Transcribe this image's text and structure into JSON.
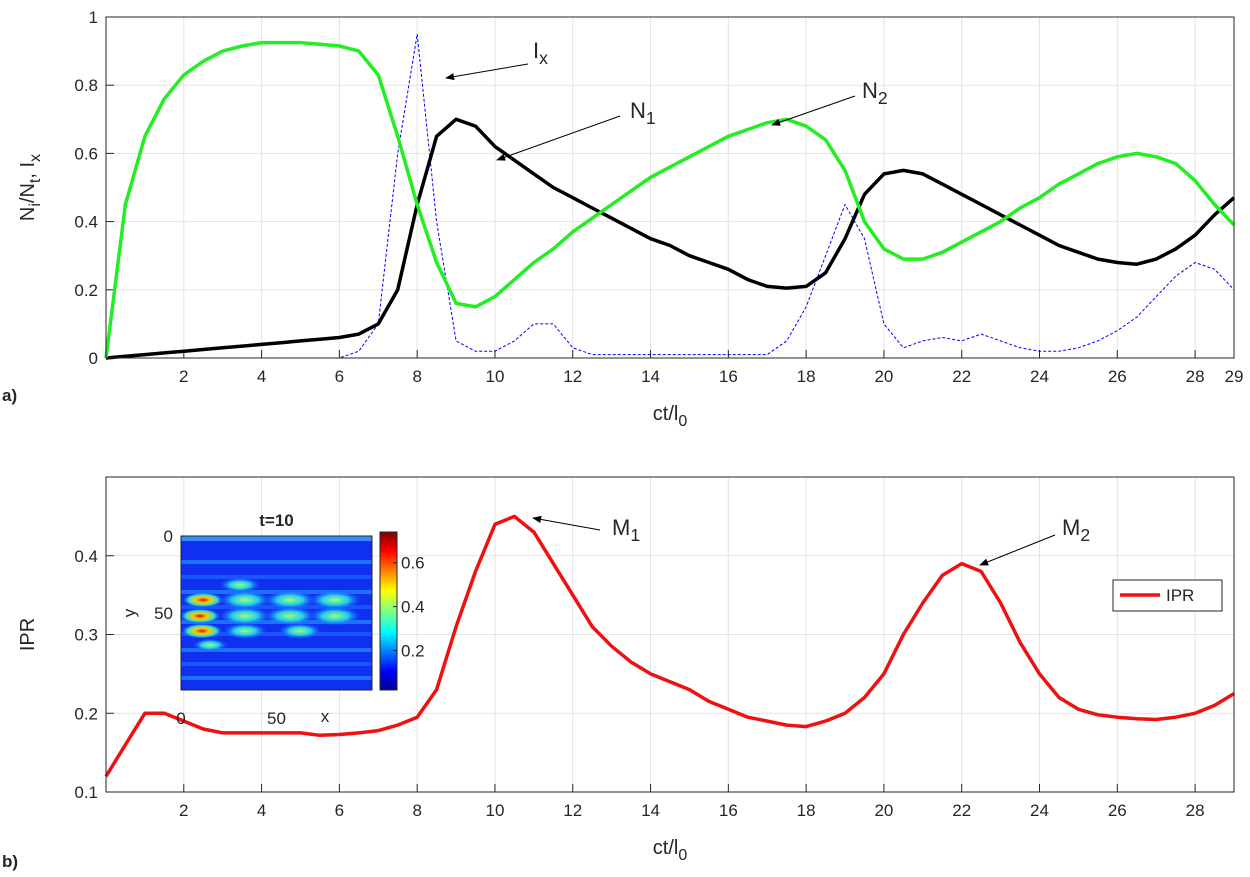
{
  "chart_data": [
    {
      "type": "line",
      "panel_label": "a)",
      "xlabel": [
        "ct/l",
        "0"
      ],
      "ylabel": [
        "N",
        "i",
        "/N",
        "t",
        ", I",
        "x"
      ],
      "x": [
        0,
        0.5,
        1,
        1.5,
        2,
        2.5,
        3,
        3.5,
        4,
        4.5,
        5,
        5.5,
        6,
        6.5,
        7,
        7.5,
        8,
        8.5,
        9,
        9.5,
        10,
        10.5,
        11,
        11.5,
        12,
        12.5,
        13,
        13.5,
        14,
        14.5,
        15,
        15.5,
        16,
        16.5,
        17,
        17.5,
        18,
        18.5,
        19,
        19.5,
        20,
        20.5,
        21,
        21.5,
        22,
        22.5,
        23,
        23.5,
        24,
        24.5,
        25,
        25.5,
        26,
        26.5,
        27,
        27.5,
        28,
        28.5,
        29
      ],
      "series": [
        {
          "color": "#0000ff",
          "dashed": true,
          "values": [
            0,
            0,
            0,
            0,
            0,
            0,
            0,
            0,
            0,
            0,
            0,
            0,
            0,
            0.02,
            0.1,
            0.6,
            0.95,
            0.4,
            0.05,
            0.02,
            0.02,
            0.05,
            0.1,
            0.1,
            0.03,
            0.01,
            0.01,
            0.01,
            0.01,
            0.01,
            0.01,
            0.01,
            0.01,
            0.01,
            0.01,
            0.05,
            0.15,
            0.3,
            0.45,
            0.35,
            0.1,
            0.03,
            0.05,
            0.06,
            0.05,
            0.07,
            0.05,
            0.03,
            0.02,
            0.02,
            0.03,
            0.05,
            0.08,
            0.12,
            0.18,
            0.24,
            0.28,
            0.26,
            0.2
          ]
        },
        {
          "color": "#000000",
          "values": [
            0,
            0.005,
            0.01,
            0.015,
            0.02,
            0.025,
            0.03,
            0.035,
            0.04,
            0.045,
            0.05,
            0.055,
            0.06,
            0.07,
            0.1,
            0.2,
            0.45,
            0.65,
            0.7,
            0.68,
            0.62,
            0.58,
            0.54,
            0.5,
            0.47,
            0.44,
            0.41,
            0.38,
            0.35,
            0.33,
            0.3,
            0.28,
            0.26,
            0.23,
            0.21,
            0.205,
            0.21,
            0.25,
            0.35,
            0.48,
            0.54,
            0.55,
            0.54,
            0.51,
            0.48,
            0.45,
            0.42,
            0.39,
            0.36,
            0.33,
            0.31,
            0.29,
            0.28,
            0.275,
            0.29,
            0.32,
            0.36,
            0.42,
            0.47
          ]
        },
        {
          "color": "#22ee22",
          "values": [
            0,
            0.45,
            0.65,
            0.76,
            0.83,
            0.87,
            0.9,
            0.915,
            0.925,
            0.925,
            0.925,
            0.92,
            0.915,
            0.9,
            0.83,
            0.65,
            0.45,
            0.28,
            0.16,
            0.15,
            0.18,
            0.23,
            0.28,
            0.32,
            0.37,
            0.41,
            0.45,
            0.49,
            0.53,
            0.56,
            0.59,
            0.62,
            0.65,
            0.67,
            0.69,
            0.7,
            0.68,
            0.64,
            0.55,
            0.4,
            0.32,
            0.29,
            0.29,
            0.31,
            0.34,
            0.37,
            0.4,
            0.44,
            0.47,
            0.51,
            0.54,
            0.57,
            0.59,
            0.6,
            0.59,
            0.57,
            0.52,
            0.45,
            0.39
          ]
        }
      ],
      "annotations": [
        [
          "I",
          "x"
        ],
        [
          "N",
          "1"
        ],
        [
          "N",
          "2"
        ]
      ],
      "xlim": [
        0,
        29
      ],
      "xticks": [
        2,
        4,
        6,
        8,
        10,
        12,
        14,
        16,
        18,
        20,
        22,
        24,
        26,
        28,
        29
      ],
      "ylim": [
        0,
        1
      ],
      "yticks": [
        0,
        0.2,
        0.4,
        0.6,
        0.8,
        1
      ],
      "grid": true
    },
    {
      "type": "line",
      "panel_label": "b)",
      "xlabel": [
        "ct/l",
        "0"
      ],
      "ylabel": [
        "IPR"
      ],
      "x": [
        0,
        0.5,
        1,
        1.5,
        2,
        2.5,
        3,
        3.5,
        4,
        4.5,
        5,
        5.5,
        6,
        6.5,
        7,
        7.5,
        8,
        8.5,
        9,
        9.5,
        10,
        10.5,
        11,
        11.5,
        12,
        12.5,
        13,
        13.5,
        14,
        14.5,
        15,
        15.5,
        16,
        16.5,
        17,
        17.5,
        18,
        18.5,
        19,
        19.5,
        20,
        20.5,
        21,
        21.5,
        22,
        22.5,
        23,
        23.5,
        24,
        24.5,
        25,
        25.5,
        26,
        26.5,
        27,
        27.5,
        28,
        28.5,
        29
      ],
      "series": [
        {
          "name": "IPR",
          "color": "#ee1111",
          "values": [
            0.12,
            0.16,
            0.2,
            0.2,
            0.19,
            0.18,
            0.175,
            0.175,
            0.175,
            0.175,
            0.175,
            0.172,
            0.173,
            0.175,
            0.178,
            0.185,
            0.195,
            0.23,
            0.31,
            0.38,
            0.44,
            0.45,
            0.43,
            0.39,
            0.35,
            0.31,
            0.285,
            0.265,
            0.25,
            0.24,
            0.23,
            0.215,
            0.205,
            0.195,
            0.19,
            0.185,
            0.183,
            0.19,
            0.2,
            0.22,
            0.25,
            0.3,
            0.34,
            0.375,
            0.39,
            0.38,
            0.34,
            0.29,
            0.25,
            0.22,
            0.205,
            0.198,
            0.195,
            0.193,
            0.192,
            0.195,
            0.2,
            0.21,
            0.225
          ]
        }
      ],
      "annotations": [
        [
          "M",
          "1"
        ],
        [
          "M",
          "2"
        ]
      ],
      "legend": "right",
      "xlim": [
        0,
        29
      ],
      "xticks": [
        2,
        4,
        6,
        8,
        10,
        12,
        14,
        16,
        18,
        20,
        22,
        24,
        26,
        28
      ],
      "ylim": [
        0.1,
        0.5
      ],
      "yticks": [
        0.1,
        0.2,
        0.3,
        0.4
      ],
      "grid": true,
      "inset": {
        "title": "t=10",
        "xlabel": "x",
        "ylabel": "y",
        "xlim": [
          0,
          100
        ],
        "xticks": [
          0,
          50
        ],
        "ylim": [
          0,
          100
        ],
        "yticks": [
          0,
          50
        ],
        "clim": [
          0.02,
          0.74
        ],
        "cticks": [
          0.2,
          0.4,
          0.6
        ]
      }
    }
  ]
}
